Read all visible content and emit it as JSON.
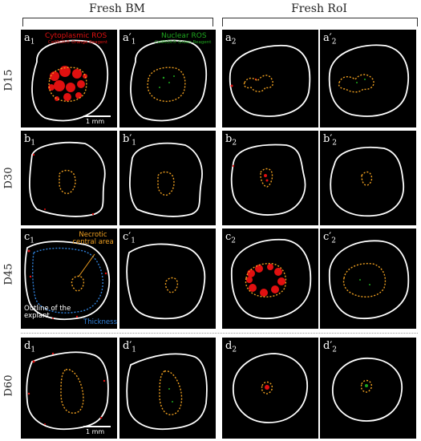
{
  "headers": {
    "fresh_bm": "Fresh BM",
    "fresh_rol": "Fresh RoI"
  },
  "rows": [
    {
      "label": "D15",
      "panels": [
        {
          "letter": "a",
          "prime": "",
          "sub": "1"
        },
        {
          "letter": "a",
          "prime": "′",
          "sub": "1"
        },
        {
          "letter": "a",
          "prime": "",
          "sub": "2"
        },
        {
          "letter": "a",
          "prime": "′",
          "sub": "2"
        }
      ]
    },
    {
      "label": "D30",
      "panels": [
        {
          "letter": "b",
          "prime": "",
          "sub": "1"
        },
        {
          "letter": "b",
          "prime": "′",
          "sub": "1"
        },
        {
          "letter": "b",
          "prime": "",
          "sub": "2"
        },
        {
          "letter": "b",
          "prime": "′",
          "sub": "2"
        }
      ]
    },
    {
      "label": "D45",
      "panels": [
        {
          "letter": "c",
          "prime": "",
          "sub": "1"
        },
        {
          "letter": "c",
          "prime": "′",
          "sub": "1"
        },
        {
          "letter": "c",
          "prime": "",
          "sub": "2"
        },
        {
          "letter": "c",
          "prime": "′",
          "sub": "2"
        }
      ]
    },
    {
      "label": "D60",
      "panels": [
        {
          "letter": "d",
          "prime": "",
          "sub": "1"
        },
        {
          "letter": "d",
          "prime": "′",
          "sub": "1"
        },
        {
          "letter": "d",
          "prime": "",
          "sub": "2"
        },
        {
          "letter": "d",
          "prime": "′",
          "sub": "2"
        }
      ]
    }
  ],
  "annotations": {
    "cyto_title": "Cytoplasmic ROS",
    "cyto_reagent": "CellROX® Orange Reagent",
    "nuc_title": "Nuclear ROS",
    "nuc_reagent": "CellROX® Green Reagent",
    "necrotic": "Necrotic central area",
    "outline": "Outline of the explant",
    "thickness": "Thickness",
    "scale_top": "1 mm",
    "scale_bottom": "1 mm"
  },
  "colors": {
    "red": "#e01010",
    "green": "#1ea51e",
    "outline": "#ffffff",
    "necrotic": "#f0a020",
    "thickness": "#2f7fd8",
    "panel_bg": "#000000"
  }
}
